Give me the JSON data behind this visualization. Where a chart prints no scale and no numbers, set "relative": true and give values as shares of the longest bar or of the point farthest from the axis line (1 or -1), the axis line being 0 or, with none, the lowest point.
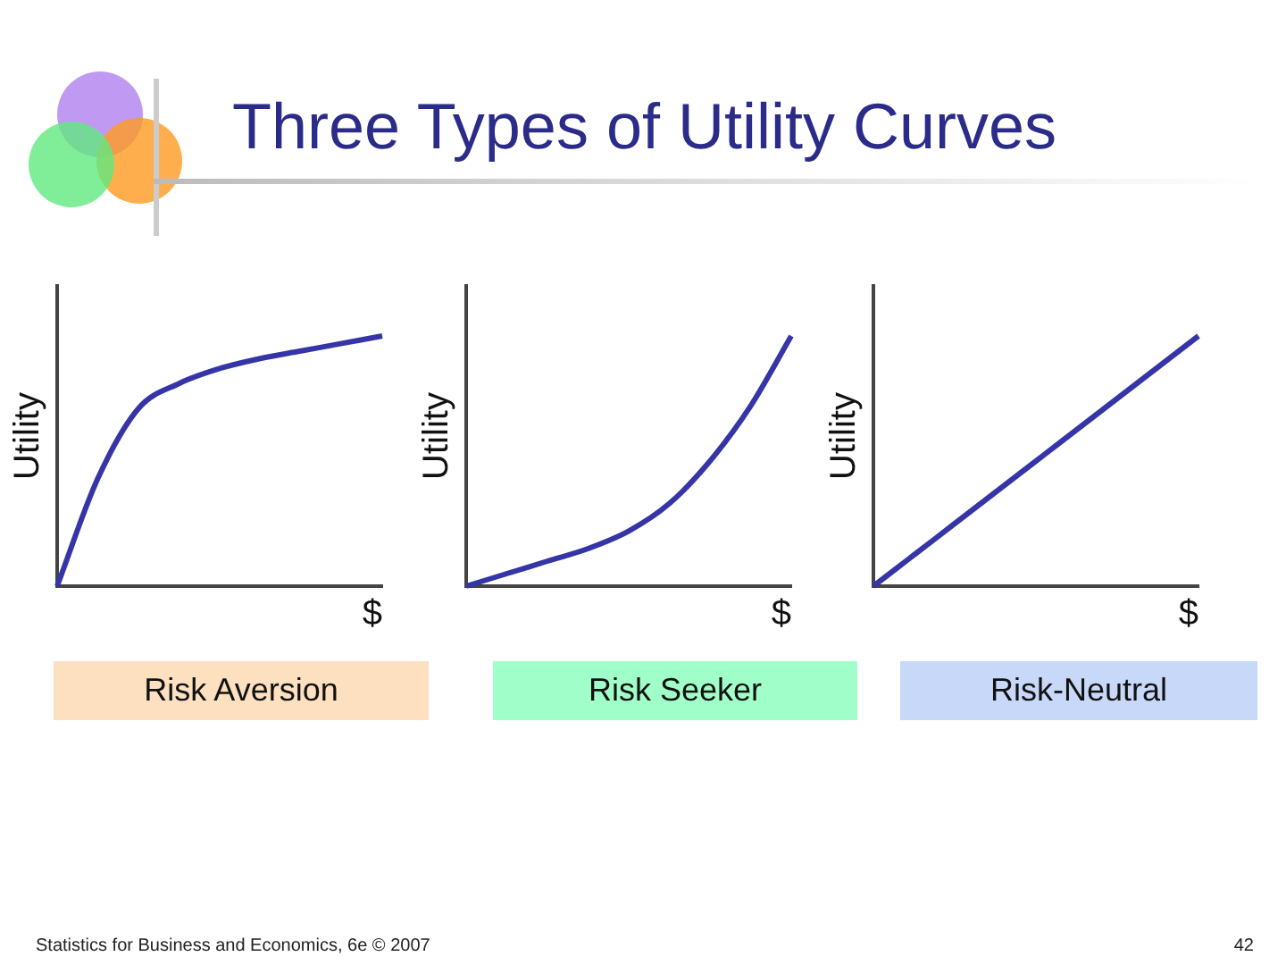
{
  "chart_data": [
    {
      "type": "line",
      "title": "Three Types of Utility Curves",
      "xlabel": "$",
      "ylabel": "Utility",
      "relative": true,
      "categories": [
        null,
        null,
        null,
        null,
        null,
        null,
        null,
        null,
        null
      ],
      "series": [
        {
          "color": "#3535a8",
          "values": [
            0,
            0.43,
            0.71,
            0.81,
            0.87,
            0.91,
            0.94,
            0.97,
            1
          ]
        }
      ],
      "annotations": [
        "Risk Aversion",
        "Statistics for Business and Economics, 6e © 2007"
      ]
    },
    {
      "type": "line",
      "xlabel": "$",
      "ylabel": "Utility",
      "relative": true,
      "categories": [
        null,
        null,
        null,
        null,
        null,
        null,
        null,
        null,
        null
      ],
      "series": [
        {
          "color": "#3535a8",
          "values": [
            0,
            0.05,
            0.1,
            0.15,
            0.22,
            0.33,
            0.5,
            0.72,
            1
          ]
        }
      ],
      "annotations": [
        "Risk Seeker"
      ]
    },
    {
      "type": "line",
      "xlabel": "$",
      "ylabel": "Utility",
      "relative": true,
      "categories": [
        null,
        null,
        null,
        null,
        null,
        null,
        null,
        null,
        null
      ],
      "series": [
        {
          "color": "#3535a8",
          "values": [
            0,
            0.125,
            0.25,
            0.375,
            0.5,
            0.625,
            0.75,
            0.875,
            1
          ]
        }
      ],
      "annotations": [
        "Risk-Neutral",
        "42"
      ]
    }
  ]
}
